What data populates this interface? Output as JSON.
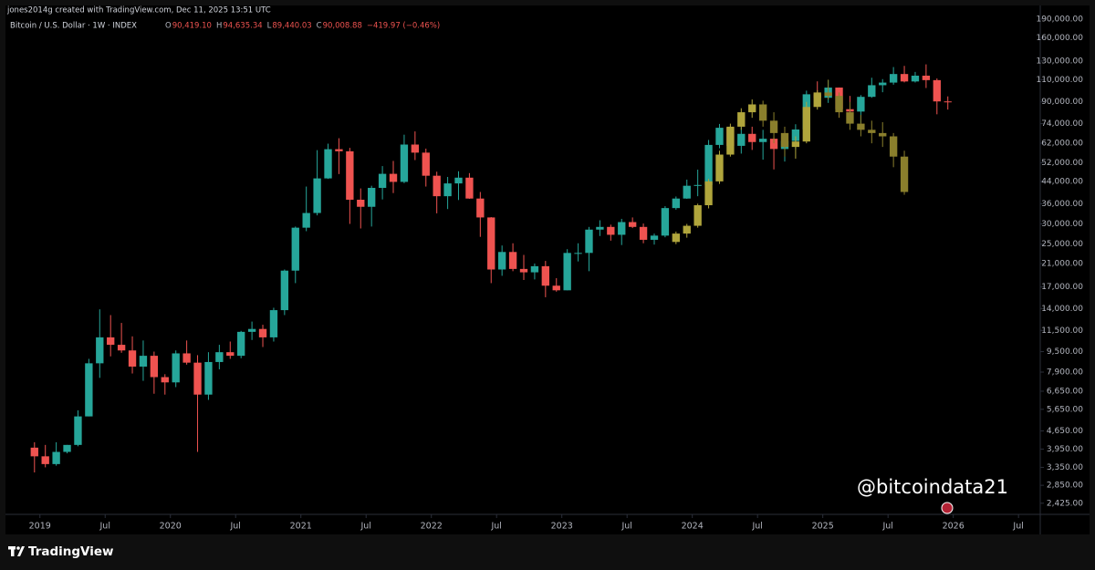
{
  "chart_data": {
    "type": "candlestick",
    "credit": "jones2014g created with TradingView.com, Dec 11, 2025 13:51 UTC",
    "symbol": "Bitcoin / U.S. Dollar · 1W · INDEX",
    "ohlc_legend": [
      {
        "key": "O",
        "value": "90,419.10"
      },
      {
        "key": "H",
        "value": "94,635.34"
      },
      {
        "key": "L",
        "value": "89,440.03"
      },
      {
        "key": "C",
        "value": "90,008.88"
      }
    ],
    "change": "−419.97 (−0.46%)",
    "watermark": "@bitcoindata21",
    "brand": "TradingView",
    "log_scale": true,
    "ylim": [
      2230,
      211000
    ],
    "yticks": [
      {
        "value": 190000,
        "label": "190,000.00"
      },
      {
        "value": 160000,
        "label": "160,000.00"
      },
      {
        "value": 130000,
        "label": "130,000.00"
      },
      {
        "value": 110000,
        "label": "110,000.00"
      },
      {
        "value": 90000,
        "label": "90,000.00"
      },
      {
        "value": 74000,
        "label": "74,000.00"
      },
      {
        "value": 62000,
        "label": "62,000.00"
      },
      {
        "value": 52000,
        "label": "52,000.00"
      },
      {
        "value": 44000,
        "label": "44,000.00"
      },
      {
        "value": 36000,
        "label": "36,000.00"
      },
      {
        "value": 30000,
        "label": "30,000.00"
      },
      {
        "value": 25000,
        "label": "25,000.00"
      },
      {
        "value": 21000,
        "label": "21,000.00"
      },
      {
        "value": 17000,
        "label": "17,000.00"
      },
      {
        "value": 14000,
        "label": "14,000.00"
      },
      {
        "value": 11500,
        "label": "11,500.00"
      },
      {
        "value": 9500,
        "label": "9,500.00"
      },
      {
        "value": 7900,
        "label": "7,900.00"
      },
      {
        "value": 6650,
        "label": "6,650.00"
      },
      {
        "value": 5650,
        "label": "5,650.00"
      },
      {
        "value": 4650,
        "label": "4,650.00"
      },
      {
        "value": 3950,
        "label": "3,950.00"
      },
      {
        "value": 3350,
        "label": "3,350.00"
      },
      {
        "value": 2850,
        "label": "2,850.00"
      },
      {
        "value": 2425,
        "label": "2,425.00"
      }
    ],
    "xlim": [
      "2018-10",
      "2026-09"
    ],
    "xticks": [
      {
        "value": "2019-01",
        "label": "2019"
      },
      {
        "value": "2019-07",
        "label": "Jul"
      },
      {
        "value": "2020-01",
        "label": "2020"
      },
      {
        "value": "2020-07",
        "label": "Jul"
      },
      {
        "value": "2021-01",
        "label": "2021"
      },
      {
        "value": "2021-07",
        "label": "Jul"
      },
      {
        "value": "2022-01",
        "label": "2022"
      },
      {
        "value": "2022-07",
        "label": "Jul"
      },
      {
        "value": "2023-01",
        "label": "2023"
      },
      {
        "value": "2023-07",
        "label": "Jul"
      },
      {
        "value": "2024-01",
        "label": "2024"
      },
      {
        "value": "2024-07",
        "label": "Jul"
      },
      {
        "value": "2025-01",
        "label": "2025"
      },
      {
        "value": "2025-07",
        "label": "Jul"
      },
      {
        "value": "2026-01",
        "label": "2026"
      },
      {
        "value": "2026-07",
        "label": "Jul"
      }
    ],
    "series": [
      {
        "up_color": "#26a69a",
        "down_color": "#ef5350",
        "x": [
          "2018-12",
          "2019-01",
          "2019-02",
          "2019-03",
          "2019-04",
          "2019-05",
          "2019-06",
          "2019-07",
          "2019-08",
          "2019-09",
          "2019-10",
          "2019-11",
          "2019-12",
          "2020-01",
          "2020-02",
          "2020-03",
          "2020-04",
          "2020-05",
          "2020-06",
          "2020-07",
          "2020-08",
          "2020-09",
          "2020-10",
          "2020-11",
          "2020-12",
          "2021-01",
          "2021-02",
          "2021-03",
          "2021-04",
          "2021-05",
          "2021-06",
          "2021-07",
          "2021-08",
          "2021-09",
          "2021-10",
          "2021-11",
          "2021-12",
          "2022-01",
          "2022-02",
          "2022-03",
          "2022-04",
          "2022-05",
          "2022-06",
          "2022-07",
          "2022-08",
          "2022-09",
          "2022-10",
          "2022-11",
          "2022-12",
          "2023-01",
          "2023-02",
          "2023-03",
          "2023-04",
          "2023-05",
          "2023-06",
          "2023-07",
          "2023-08",
          "2023-09",
          "2023-10",
          "2023-11",
          "2023-12",
          "2024-01",
          "2024-02",
          "2024-03",
          "2024-04",
          "2024-05",
          "2024-06",
          "2024-07",
          "2024-08",
          "2024-09",
          "2024-10",
          "2024-11",
          "2024-12",
          "2025-01",
          "2025-02",
          "2025-03",
          "2025-04",
          "2025-05",
          "2025-06",
          "2025-07",
          "2025-08",
          "2025-09",
          "2025-10",
          "2025-11",
          "2025-12"
        ],
        "open": [
          4000,
          3700,
          3450,
          3850,
          4100,
          5300,
          8550,
          10800,
          10100,
          9600,
          8300,
          9150,
          7550,
          7200,
          9350,
          8600,
          6450,
          8650,
          9450,
          9150,
          11350,
          11650,
          10800,
          13800,
          19700,
          29000,
          33100,
          45200,
          58800,
          57700,
          37300,
          35000,
          41500,
          47100,
          43800,
          61300,
          57000,
          46300,
          38500,
          43200,
          45500,
          37700,
          31800,
          19900,
          23300,
          20000,
          19400,
          20500,
          17200,
          16500,
          23100,
          23100,
          28500,
          29200,
          27200,
          30500,
          29200,
          26000,
          27000,
          34600,
          37700,
          42300,
          42600,
          61100,
          71300,
          60600,
          67500,
          62700,
          64600,
          58900,
          63300,
          70200,
          96400,
          93400,
          102400,
          84300,
          82500,
          94200,
          104600,
          107100,
          115700,
          108200,
          114000,
          109500,
          90400
        ],
        "high": [
          4200,
          4100,
          4200,
          4100,
          5600,
          8900,
          13900,
          13200,
          12300,
          10900,
          10500,
          9500,
          7750,
          9600,
          10500,
          9200,
          9450,
          10100,
          10400,
          11450,
          12450,
          12100,
          14100,
          19900,
          29300,
          42000,
          58300,
          61800,
          64900,
          59500,
          41300,
          42300,
          50500,
          52900,
          67000,
          69000,
          59100,
          48000,
          45800,
          48200,
          47400,
          40000,
          31900,
          24700,
          25200,
          22700,
          21000,
          21500,
          18400,
          23900,
          25200,
          29200,
          31000,
          29800,
          31400,
          31800,
          30100,
          27500,
          35200,
          38400,
          44700,
          48900,
          63900,
          73800,
          72700,
          71900,
          72000,
          70000,
          65600,
          66500,
          73600,
          99600,
          108300,
          109400,
          102500,
          95000,
          95700,
          111900,
          110500,
          123200,
          124500,
          117900,
          126200,
          111200,
          94600
        ],
        "low": [
          3200,
          3350,
          3400,
          3800,
          4050,
          5300,
          7500,
          9100,
          9400,
          7800,
          7300,
          6500,
          6450,
          6900,
          8450,
          3850,
          6150,
          8100,
          8900,
          8950,
          10550,
          9900,
          10400,
          13200,
          17600,
          28100,
          32400,
          45000,
          47000,
          30000,
          28800,
          29300,
          37400,
          39600,
          43300,
          53300,
          42000,
          33000,
          34300,
          37200,
          37600,
          26700,
          17600,
          18800,
          19600,
          18100,
          18200,
          15500,
          16300,
          16500,
          21400,
          19600,
          26900,
          25800,
          24800,
          28900,
          25200,
          24900,
          26600,
          34100,
          37600,
          38500,
          41900,
          59300,
          59600,
          56500,
          58400,
          53500,
          49000,
          52600,
          58900,
          66800,
          90500,
          89200,
          78200,
          76600,
          74400,
          93400,
          98200,
          105100,
          107300,
          107200,
          102000,
          80500,
          84000
        ],
        "close": [
          3700,
          3450,
          3850,
          4100,
          5300,
          8550,
          10800,
          10100,
          9600,
          8300,
          9150,
          7550,
          7200,
          9350,
          8600,
          6450,
          8650,
          9450,
          9150,
          11350,
          11650,
          10800,
          13800,
          19700,
          29000,
          33100,
          45200,
          58800,
          57700,
          37300,
          35000,
          41500,
          47100,
          43800,
          61300,
          57000,
          46300,
          38500,
          43200,
          45500,
          37700,
          31800,
          19900,
          23300,
          20000,
          19400,
          20500,
          17200,
          16500,
          23100,
          23100,
          28500,
          29200,
          27200,
          30500,
          29200,
          26000,
          27000,
          34600,
          37700,
          42300,
          42600,
          61100,
          71300,
          60600,
          67500,
          62700,
          64600,
          58900,
          63300,
          70200,
          96400,
          93400,
          102400,
          84300,
          82500,
          94200,
          104600,
          107100,
          115700,
          108200,
          114000,
          109500,
          90400,
          90000
        ]
      },
      {
        "up_color": "#b0a53c",
        "down_color": "#8a7f2c",
        "x": [
          "2023-11",
          "2023-12",
          "2024-01",
          "2024-02",
          "2024-03",
          "2024-04",
          "2024-05",
          "2024-06",
          "2024-07",
          "2024-08",
          "2024-09",
          "2024-10",
          "2024-11",
          "2024-12",
          "2025-01",
          "2025-02",
          "2025-03",
          "2025-04",
          "2025-05",
          "2025-06",
          "2025-07",
          "2025-08"
        ],
        "open": [
          25500,
          27500,
          29500,
          35500,
          44000,
          56000,
          72000,
          82000,
          88000,
          76000,
          68000,
          60000,
          63000,
          86000,
          98000,
          95000,
          82000,
          74000,
          70000,
          68000,
          66000,
          55000
        ],
        "high": [
          28000,
          30000,
          36000,
          45000,
          58000,
          74000,
          85000,
          92000,
          91000,
          82000,
          72000,
          66000,
          90000,
          100000,
          110000,
          98000,
          90000,
          80000,
          76000,
          75000,
          68000,
          58000
        ],
        "low": [
          25000,
          26500,
          29000,
          34500,
          43000,
          55000,
          70000,
          78000,
          72000,
          62000,
          55000,
          54000,
          62000,
          84000,
          92000,
          78000,
          70000,
          66000,
          62000,
          60000,
          50000,
          39000
        ],
        "close": [
          27500,
          29500,
          35500,
          44000,
          56000,
          72000,
          82000,
          88000,
          76000,
          68000,
          60000,
          63000,
          86000,
          98000,
          95000,
          82000,
          74000,
          70000,
          68000,
          66000,
          55000,
          40000
        ]
      }
    ]
  }
}
